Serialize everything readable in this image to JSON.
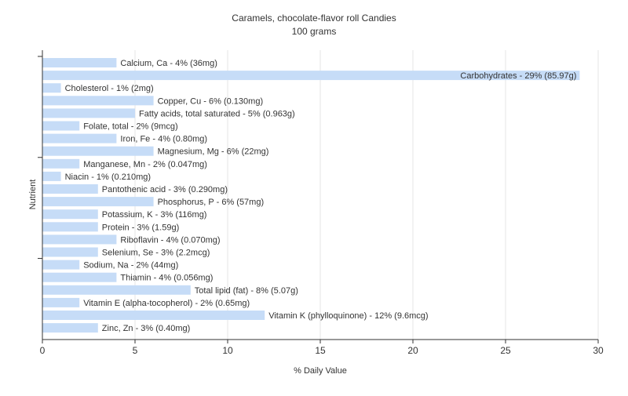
{
  "chart_data": {
    "type": "bar",
    "orientation": "horizontal",
    "title": "Caramels, chocolate-flavor roll Candies",
    "subtitle": "100 grams",
    "xlabel": "% Daily Value",
    "ylabel": "Nutrient",
    "xlim": [
      0,
      30
    ],
    "xticks": [
      0,
      5,
      10,
      15,
      20,
      25,
      30
    ],
    "grid": true,
    "legend": "none",
    "bar_color": "#c6dcf7",
    "categories": [
      "Calcium, Ca",
      "Carbohydrates",
      "Cholesterol",
      "Copper, Cu",
      "Fatty acids, total saturated",
      "Folate, total",
      "Iron, Fe",
      "Magnesium, Mg",
      "Manganese, Mn",
      "Niacin",
      "Pantothenic acid",
      "Phosphorus, P",
      "Potassium, K",
      "Protein",
      "Riboflavin",
      "Selenium, Se",
      "Sodium, Na",
      "Thiamin",
      "Total lipid (fat)",
      "Vitamin E (alpha-tocopherol)",
      "Vitamin K (phylloquinone)",
      "Zinc, Zn"
    ],
    "values": [
      4,
      29,
      1,
      6,
      5,
      2,
      4,
      6,
      2,
      1,
      3,
      6,
      3,
      3,
      4,
      3,
      2,
      4,
      8,
      2,
      12,
      3
    ],
    "labels": [
      "Calcium, Ca - 4% (36mg)",
      "Carbohydrates - 29% (85.97g)",
      "Cholesterol - 1% (2mg)",
      "Copper, Cu - 6% (0.130mg)",
      "Fatty acids, total saturated - 5% (0.963g)",
      "Folate, total - 2% (9mcg)",
      "Iron, Fe - 4% (0.80mg)",
      "Magnesium, Mg - 6% (22mg)",
      "Manganese, Mn - 2% (0.047mg)",
      "Niacin - 1% (0.210mg)",
      "Pantothenic acid - 3% (0.290mg)",
      "Phosphorus, P - 6% (57mg)",
      "Potassium, K - 3% (116mg)",
      "Protein - 3% (1.59g)",
      "Riboflavin - 4% (0.070mg)",
      "Selenium, Se - 3% (2.2mcg)",
      "Sodium, Na - 2% (44mg)",
      "Thiamin - 4% (0.056mg)",
      "Total lipid (fat) - 8% (5.07g)",
      "Vitamin E (alpha-tocopherol) - 2% (0.65mg)",
      "Vitamin K (phylloquinone) - 12% (9.6mcg)",
      "Zinc, Zn - 3% (0.40mg)"
    ]
  }
}
